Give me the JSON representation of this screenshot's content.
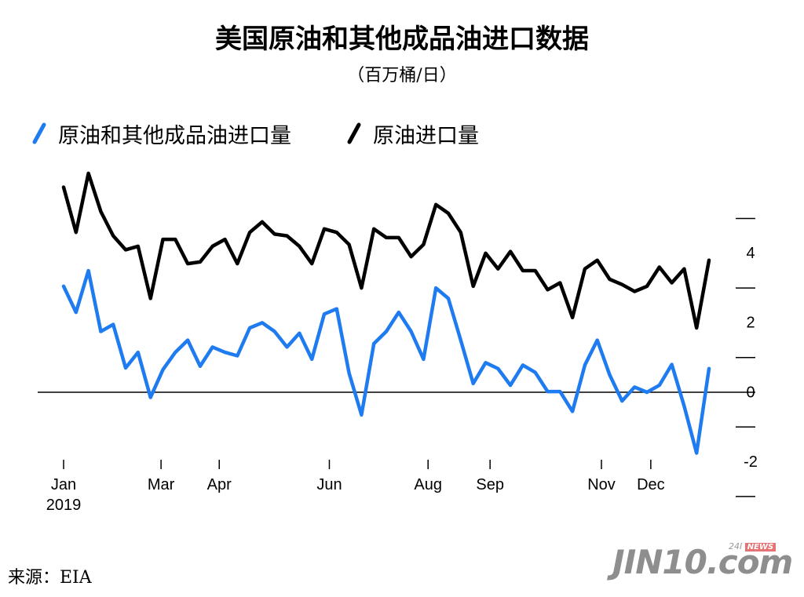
{
  "title": "美国原油和其他成品油进口数据",
  "subtitle": "（百万桶/日）",
  "source": "来源：EIA",
  "watermark": {
    "main": "JIN10.com",
    "tag": "24I",
    "news": "NEWS"
  },
  "colors": {
    "series1": "#1f7bf0",
    "series2": "#000000"
  },
  "chart_data": {
    "type": "line",
    "legend_placement": "top-left",
    "grid": false,
    "ylim": [
      -2.4,
      6.3
    ],
    "yticks": [
      -2,
      0,
      2,
      4
    ],
    "xlim": [
      0,
      51
    ],
    "x_axis_labels": [
      {
        "label": "Jan",
        "x": 0
      },
      {
        "label": "Mar",
        "x": 7.7
      },
      {
        "label": "Apr",
        "x": 12.3
      },
      {
        "label": "Jun",
        "x": 21
      },
      {
        "label": "Aug",
        "x": 28.8
      },
      {
        "label": "Sep",
        "x": 33.7
      },
      {
        "label": "Nov",
        "x": 42.5
      },
      {
        "label": "Dec",
        "x": 46.4
      }
    ],
    "year_label": "2019",
    "series": [
      {
        "name": "原油和其他成品油进口量",
        "color": "#1f7bf0",
        "values": [
          3.05,
          2.3,
          3.5,
          1.75,
          1.95,
          0.7,
          1.15,
          -0.15,
          0.65,
          1.15,
          1.5,
          0.75,
          1.3,
          1.15,
          1.05,
          1.85,
          2.0,
          1.75,
          1.3,
          1.7,
          0.95,
          2.25,
          2.4,
          0.55,
          -0.65,
          1.4,
          1.75,
          2.3,
          1.75,
          0.95,
          3.0,
          2.7,
          1.5,
          0.25,
          0.85,
          0.68,
          0.2,
          0.78,
          0.57,
          0.02,
          0.02,
          -0.55,
          0.78,
          1.5,
          0.5,
          -0.25,
          0.15,
          0.0,
          0.2,
          0.8,
          -0.4,
          -1.75,
          0.68
        ]
      },
      {
        "name": "原油进口量",
        "color": "#000000",
        "values": [
          5.9,
          4.6,
          6.3,
          5.2,
          4.5,
          4.1,
          4.2,
          2.7,
          4.4,
          4.4,
          3.7,
          3.75,
          4.2,
          4.4,
          3.7,
          4.6,
          4.9,
          4.55,
          4.5,
          4.2,
          3.7,
          4.7,
          4.6,
          4.25,
          3.0,
          4.7,
          4.45,
          4.45,
          3.9,
          4.25,
          5.4,
          5.15,
          4.6,
          3.05,
          4.0,
          3.55,
          4.05,
          3.5,
          3.5,
          2.95,
          3.15,
          2.15,
          3.55,
          3.8,
          3.25,
          3.1,
          2.9,
          3.05,
          3.6,
          3.15,
          3.55,
          1.85,
          3.8
        ]
      }
    ]
  }
}
